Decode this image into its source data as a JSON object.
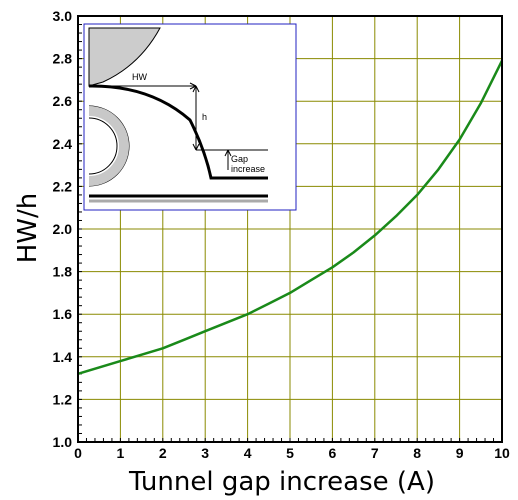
{
  "chart_data": {
    "type": "line",
    "title": "",
    "xlabel": "Tunnel gap increase (A)",
    "ylabel": "HW/h",
    "xlim": [
      0,
      10
    ],
    "ylim": [
      1.0,
      3.0
    ],
    "x_ticks": [
      "0",
      "1",
      "2",
      "3",
      "4",
      "5",
      "6",
      "7",
      "8",
      "9",
      "10"
    ],
    "y_ticks": [
      "1.0",
      "1.2",
      "1.4",
      "1.6",
      "1.8",
      "2.0",
      "2.2",
      "2.4",
      "2.6",
      "2.8",
      "3.0"
    ],
    "grid": true,
    "series": [
      {
        "color": "#1a8a1a",
        "x": [
          0,
          0.5,
          1,
          1.5,
          2,
          2.5,
          3,
          3.5,
          4,
          4.5,
          5,
          5.5,
          6,
          6.5,
          7,
          7.5,
          8,
          8.5,
          9,
          9.5,
          10
        ],
        "y": [
          1.32,
          1.35,
          1.38,
          1.41,
          1.44,
          1.48,
          1.52,
          1.56,
          1.6,
          1.65,
          1.7,
          1.76,
          1.82,
          1.89,
          1.97,
          2.06,
          2.16,
          2.28,
          2.42,
          2.59,
          2.79
        ]
      }
    ]
  },
  "inset": {
    "labels": {
      "hw": "HW",
      "h": "h",
      "gap_line1": "Gap",
      "gap_line2": "increase"
    }
  }
}
